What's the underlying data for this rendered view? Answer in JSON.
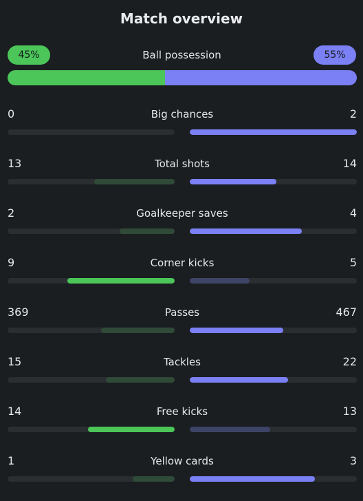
{
  "title": "Match overview",
  "possession": {
    "label": "Ball possession",
    "home": {
      "text": "45%",
      "value": 45
    },
    "away": {
      "text": "55%",
      "value": 55
    }
  },
  "colors": {
    "home_strong": "#4cc559",
    "home_weak": "#2f4a37",
    "away_strong": "#7b80f5",
    "away_weak": "#3e4466",
    "track": "#2a2e31"
  },
  "stats": [
    {
      "label": "Big chances",
      "home": "0",
      "away": "2",
      "home_fill": 0.0,
      "away_fill": 1.0,
      "home_leads": false
    },
    {
      "label": "Total shots",
      "home": "13",
      "away": "14",
      "home_fill": 0.48,
      "away_fill": 0.52,
      "home_leads": false
    },
    {
      "label": "Goalkeeper saves",
      "home": "2",
      "away": "4",
      "home_fill": 0.33,
      "away_fill": 0.67,
      "home_leads": false
    },
    {
      "label": "Corner kicks",
      "home": "9",
      "away": "5",
      "home_fill": 0.64,
      "away_fill": 0.36,
      "home_leads": true
    },
    {
      "label": "Passes",
      "home": "369",
      "away": "467",
      "home_fill": 0.44,
      "away_fill": 0.56,
      "home_leads": false
    },
    {
      "label": "Tackles",
      "home": "15",
      "away": "22",
      "home_fill": 0.41,
      "away_fill": 0.59,
      "home_leads": false
    },
    {
      "label": "Free kicks",
      "home": "14",
      "away": "13",
      "home_fill": 0.52,
      "away_fill": 0.48,
      "home_leads": true
    },
    {
      "label": "Yellow cards",
      "home": "1",
      "away": "3",
      "home_fill": 0.25,
      "away_fill": 0.75,
      "home_leads": false
    }
  ]
}
